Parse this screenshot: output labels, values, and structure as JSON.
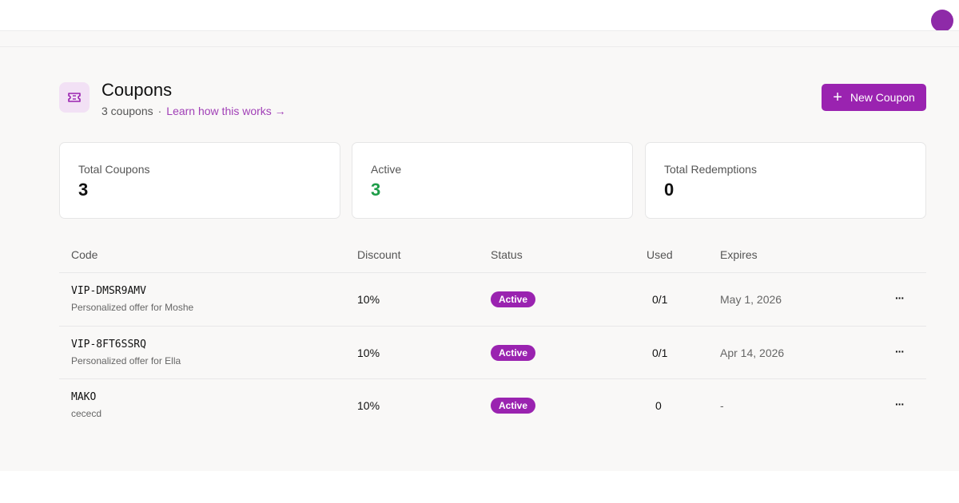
{
  "header": {
    "title": "Coupons",
    "count_text": "3 coupons",
    "separator": "·",
    "learn_link": "Learn how this works →",
    "new_button_label": "New Coupon",
    "icon": "ticket-icon"
  },
  "stats": [
    {
      "label": "Total Coupons",
      "value": "3"
    },
    {
      "label": "Active",
      "value": "3"
    },
    {
      "label": "Total Redemptions",
      "value": "0"
    }
  ],
  "table": {
    "headers": [
      "Code",
      "Discount",
      "Status",
      "Used",
      "Expires"
    ],
    "rows": [
      {
        "code": "VIP-DMSR9AMV",
        "description": "Personalized offer for Moshe",
        "discount": "10%",
        "status": "Active",
        "used": "0/1",
        "expires": "May 1, 2026"
      },
      {
        "code": "VIP-8FT6SSRQ",
        "description": "Personalized offer for Ella",
        "discount": "10%",
        "status": "Active",
        "used": "0/1",
        "expires": "Apr 14, 2026"
      },
      {
        "code": "MAKO",
        "description": "cececd",
        "discount": "10%",
        "status": "Active",
        "used": "0",
        "expires": "-"
      }
    ],
    "row_menu_label": "···"
  },
  "colors": {
    "accent": "#9a23b0",
    "active_green": "#1e9d49",
    "icon_bg": "#f2e1f5"
  }
}
